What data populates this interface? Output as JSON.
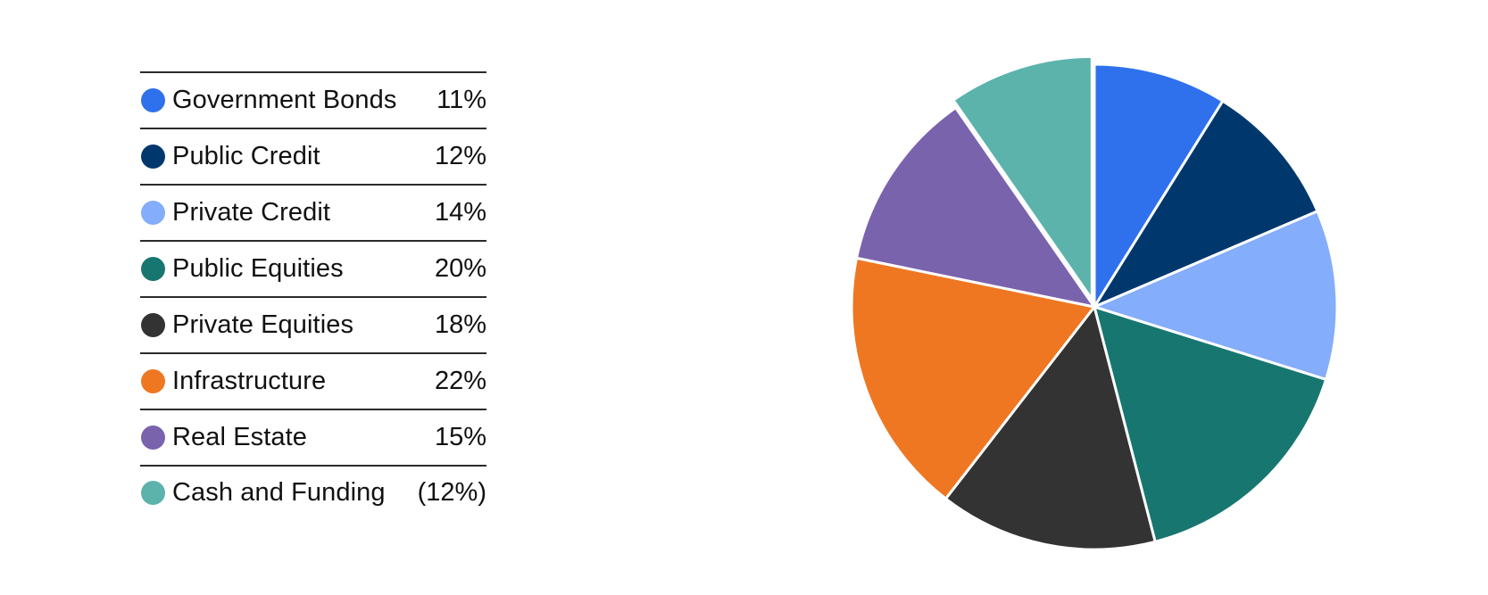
{
  "chart_data": {
    "type": "pie",
    "title": "",
    "legend_position": "left",
    "slices": [
      {
        "label": "Government Bonds",
        "value_label": "11%",
        "value": 11,
        "color": "#2F71EC"
      },
      {
        "label": "Public Credit",
        "value_label": "12%",
        "value": 12,
        "color": "#00386E"
      },
      {
        "label": "Private Credit",
        "value_label": "14%",
        "value": 14,
        "color": "#84ADFB"
      },
      {
        "label": "Public Equities",
        "value_label": "20%",
        "value": 20,
        "color": "#177670"
      },
      {
        "label": "Private Equities",
        "value_label": "18%",
        "value": 18,
        "color": "#333333"
      },
      {
        "label": "Infrastructure",
        "value_label": "22%",
        "value": 22,
        "color": "#EF7722"
      },
      {
        "label": "Real Estate",
        "value_label": "15%",
        "value": 15,
        "color": "#7A63AD"
      },
      {
        "label": "Cash and Funding",
        "value_label": "(12%)",
        "value": -12,
        "color": "#5BB3AC",
        "exploded": true
      }
    ]
  }
}
